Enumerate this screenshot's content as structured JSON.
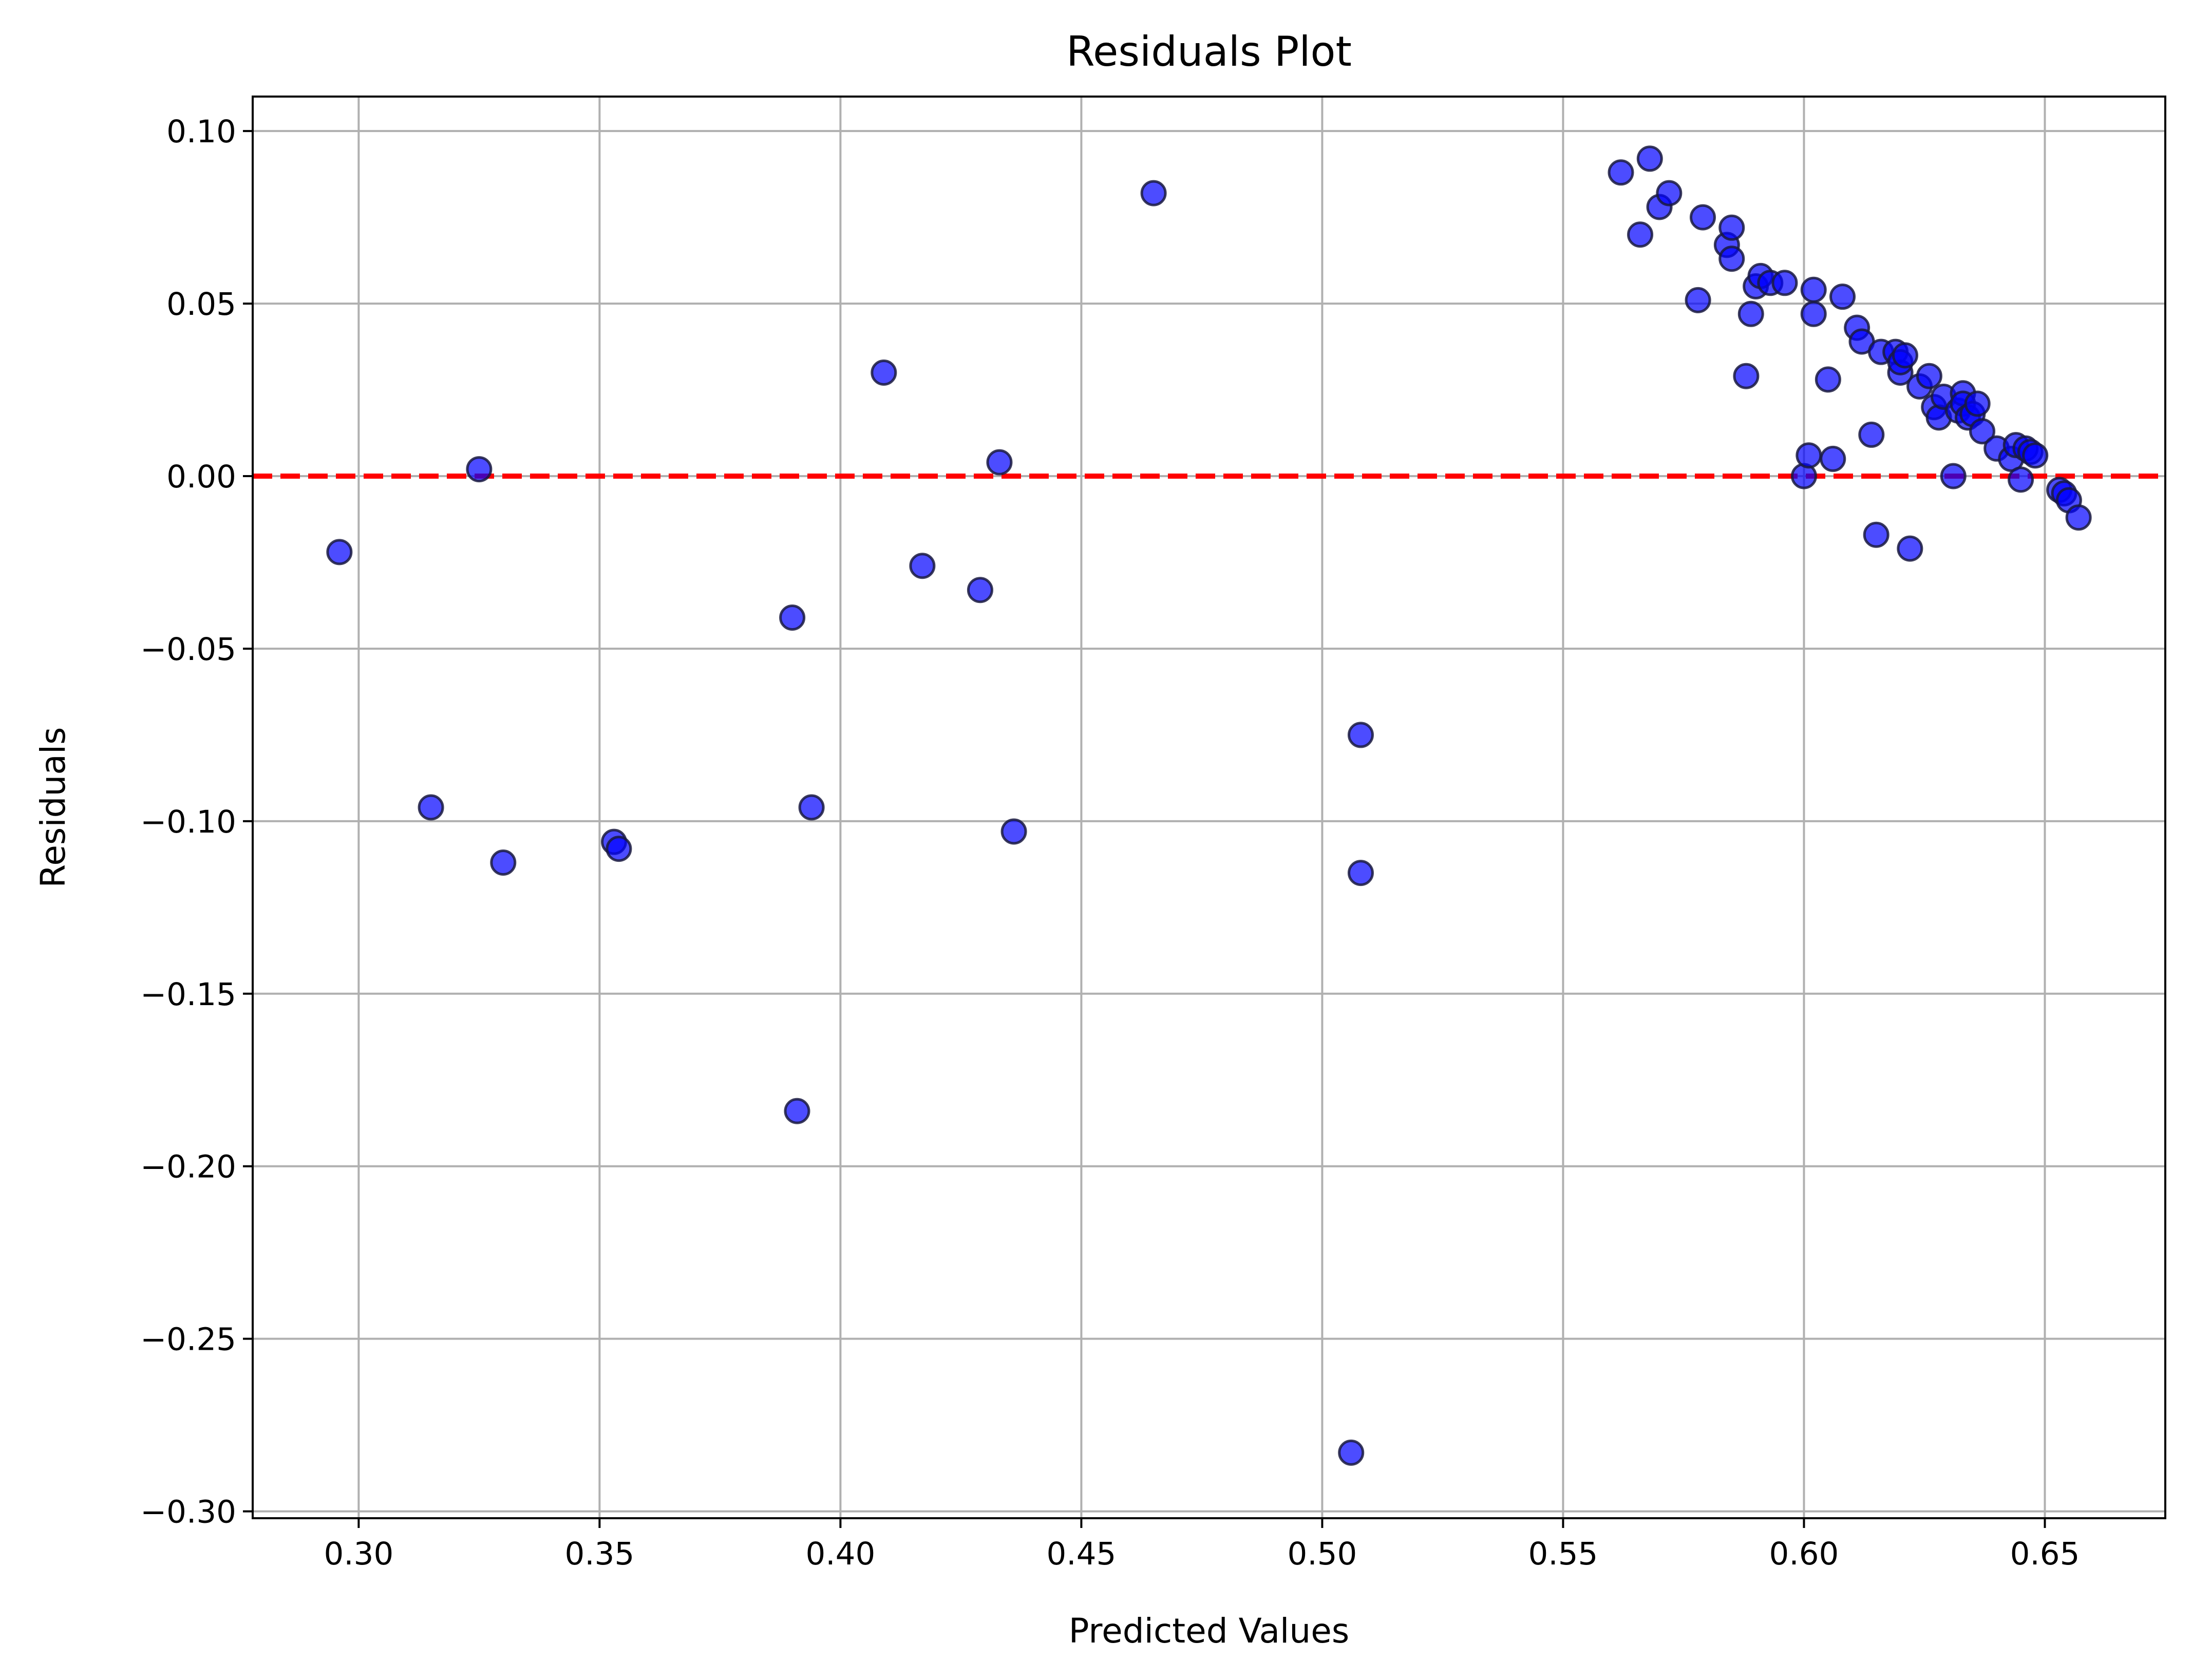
{
  "chart_data": {
    "type": "scatter",
    "title": "Residuals Plot",
    "xlabel": "Predicted Values",
    "ylabel": "Residuals",
    "xlim": [
      0.278,
      0.675
    ],
    "ylim": [
      -0.302,
      0.11
    ],
    "xticks": [
      {
        "value": 0.3,
        "label": "0.30"
      },
      {
        "value": 0.35,
        "label": "0.35"
      },
      {
        "value": 0.4,
        "label": "0.40"
      },
      {
        "value": 0.45,
        "label": "0.45"
      },
      {
        "value": 0.5,
        "label": "0.50"
      },
      {
        "value": 0.55,
        "label": "0.55"
      },
      {
        "value": 0.6,
        "label": "0.60"
      },
      {
        "value": 0.65,
        "label": "0.65"
      }
    ],
    "yticks": [
      {
        "value": 0.1,
        "label": "0.10"
      },
      {
        "value": 0.05,
        "label": "0.05"
      },
      {
        "value": 0.0,
        "label": "0.00"
      },
      {
        "value": -0.05,
        "label": "−0.05"
      },
      {
        "value": -0.1,
        "label": "−0.10"
      },
      {
        "value": -0.15,
        "label": "−0.15"
      },
      {
        "value": -0.2,
        "label": "−0.20"
      },
      {
        "value": -0.25,
        "label": "−0.25"
      },
      {
        "value": -0.3,
        "label": "−0.30"
      }
    ],
    "grid": true,
    "reference_line": {
      "y": 0,
      "color": "#ff0000",
      "style": "dashed"
    },
    "marker": {
      "fill": "#0000ff",
      "edge": "#1a1a40",
      "opacity": 0.7
    },
    "points": [
      {
        "x": 0.296,
        "y": -0.022
      },
      {
        "x": 0.315,
        "y": -0.096
      },
      {
        "x": 0.325,
        "y": 0.002
      },
      {
        "x": 0.33,
        "y": -0.112
      },
      {
        "x": 0.353,
        "y": -0.106
      },
      {
        "x": 0.354,
        "y": -0.108
      },
      {
        "x": 0.39,
        "y": -0.041
      },
      {
        "x": 0.391,
        "y": -0.184
      },
      {
        "x": 0.394,
        "y": -0.096
      },
      {
        "x": 0.409,
        "y": 0.03
      },
      {
        "x": 0.417,
        "y": -0.026
      },
      {
        "x": 0.429,
        "y": -0.033
      },
      {
        "x": 0.433,
        "y": 0.004
      },
      {
        "x": 0.436,
        "y": -0.103
      },
      {
        "x": 0.465,
        "y": 0.082
      },
      {
        "x": 0.506,
        "y": -0.283
      },
      {
        "x": 0.508,
        "y": -0.115
      },
      {
        "x": 0.508,
        "y": -0.075
      },
      {
        "x": 0.562,
        "y": 0.088
      },
      {
        "x": 0.566,
        "y": 0.07
      },
      {
        "x": 0.568,
        "y": 0.092
      },
      {
        "x": 0.57,
        "y": 0.078
      },
      {
        "x": 0.572,
        "y": 0.082
      },
      {
        "x": 0.578,
        "y": 0.051
      },
      {
        "x": 0.579,
        "y": 0.075
      },
      {
        "x": 0.584,
        "y": 0.067
      },
      {
        "x": 0.585,
        "y": 0.072
      },
      {
        "x": 0.585,
        "y": 0.063
      },
      {
        "x": 0.588,
        "y": 0.029
      },
      {
        "x": 0.589,
        "y": 0.047
      },
      {
        "x": 0.59,
        "y": 0.055
      },
      {
        "x": 0.591,
        "y": 0.058
      },
      {
        "x": 0.593,
        "y": 0.056
      },
      {
        "x": 0.596,
        "y": 0.056
      },
      {
        "x": 0.6,
        "y": 0.0
      },
      {
        "x": 0.601,
        "y": 0.006
      },
      {
        "x": 0.602,
        "y": 0.054
      },
      {
        "x": 0.602,
        "y": 0.047
      },
      {
        "x": 0.605,
        "y": 0.028
      },
      {
        "x": 0.606,
        "y": 0.005
      },
      {
        "x": 0.608,
        "y": 0.052
      },
      {
        "x": 0.611,
        "y": 0.043
      },
      {
        "x": 0.612,
        "y": 0.039
      },
      {
        "x": 0.614,
        "y": 0.012
      },
      {
        "x": 0.615,
        "y": -0.017
      },
      {
        "x": 0.616,
        "y": 0.036
      },
      {
        "x": 0.619,
        "y": 0.036
      },
      {
        "x": 0.62,
        "y": 0.03
      },
      {
        "x": 0.62,
        "y": 0.033
      },
      {
        "x": 0.621,
        "y": 0.035
      },
      {
        "x": 0.622,
        "y": -0.021
      },
      {
        "x": 0.624,
        "y": 0.026
      },
      {
        "x": 0.626,
        "y": 0.029
      },
      {
        "x": 0.627,
        "y": 0.02
      },
      {
        "x": 0.628,
        "y": 0.017
      },
      {
        "x": 0.629,
        "y": 0.023
      },
      {
        "x": 0.631,
        "y": 0.0
      },
      {
        "x": 0.632,
        "y": 0.019
      },
      {
        "x": 0.633,
        "y": 0.024
      },
      {
        "x": 0.633,
        "y": 0.021
      },
      {
        "x": 0.634,
        "y": 0.017
      },
      {
        "x": 0.635,
        "y": 0.018
      },
      {
        "x": 0.636,
        "y": 0.021
      },
      {
        "x": 0.637,
        "y": 0.013
      },
      {
        "x": 0.64,
        "y": 0.008
      },
      {
        "x": 0.643,
        "y": 0.005
      },
      {
        "x": 0.644,
        "y": 0.009
      },
      {
        "x": 0.645,
        "y": -0.001
      },
      {
        "x": 0.646,
        "y": 0.008
      },
      {
        "x": 0.647,
        "y": 0.007
      },
      {
        "x": 0.648,
        "y": 0.006
      },
      {
        "x": 0.653,
        "y": -0.004
      },
      {
        "x": 0.654,
        "y": -0.005
      },
      {
        "x": 0.655,
        "y": -0.007
      },
      {
        "x": 0.657,
        "y": -0.012
      }
    ]
  }
}
